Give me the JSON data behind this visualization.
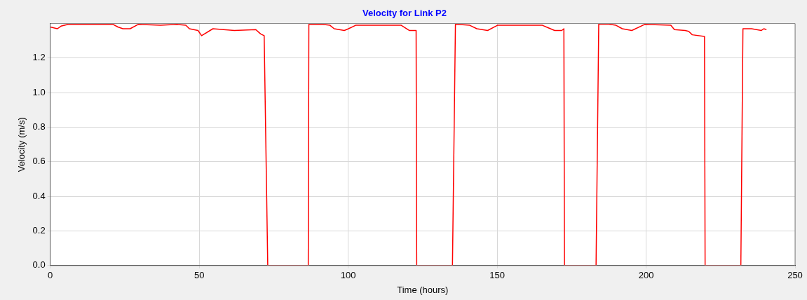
{
  "chart_data": {
    "type": "line",
    "title": "Velocity for Link P2",
    "xlabel": "Time (hours)",
    "ylabel": "Velocity (m/s)",
    "xlim": [
      0,
      250
    ],
    "xticks": [
      0,
      50,
      100,
      150,
      200,
      250
    ],
    "ylim": [
      0,
      1.4
    ],
    "yticks": [
      {
        "value": 0,
        "label": "0.0"
      },
      0.2,
      0.4,
      0.6,
      0.8,
      {
        "value": 1,
        "label": "1.0"
      },
      1.2
    ],
    "grid": true,
    "legend": false,
    "marker": "none",
    "line_style": "solid",
    "series": [
      {
        "color": "#ff0000",
        "x": [
          0,
          2.4,
          3.6,
          6,
          13.2,
          21,
          22.7,
          24.4,
          26.8,
          29.5,
          37,
          42.6,
          45.5,
          46.7,
          49.6,
          50.8,
          54.6,
          61.8,
          69,
          70.6,
          71.8,
          73,
          86.6,
          86.8,
          91,
          93.9,
          95.3,
          98.7,
          100.1,
          102.5,
          117.8,
          120.5,
          122.8,
          123,
          135,
          136,
          140.8,
          143.2,
          146.8,
          150.1,
          165.2,
          167.2,
          169.3,
          171.7,
          172.4,
          172.6,
          183.2,
          184.1,
          187.5,
          189.9,
          192,
          195.2,
          199.5,
          208.3,
          209.5,
          213.1,
          214.3,
          215.5,
          219.6,
          219.8,
          231.8,
          232.5,
          235.4,
          238.7,
          239.5,
          240.4
        ],
        "values": [
          1.38,
          1.37,
          1.385,
          1.395,
          1.395,
          1.396,
          1.38,
          1.37,
          1.37,
          1.395,
          1.39,
          1.395,
          1.39,
          1.37,
          1.36,
          1.33,
          1.37,
          1.36,
          1.365,
          1.34,
          1.33,
          0,
          0,
          1.395,
          1.396,
          1.39,
          1.37,
          1.36,
          1.37,
          1.39,
          1.39,
          1.36,
          1.36,
          0,
          0,
          1.396,
          1.39,
          1.37,
          1.36,
          1.39,
          1.39,
          1.375,
          1.36,
          1.36,
          1.37,
          0,
          0,
          1.396,
          1.396,
          1.39,
          1.37,
          1.36,
          1.395,
          1.39,
          1.365,
          1.36,
          1.355,
          1.335,
          1.325,
          0,
          0,
          1.37,
          1.37,
          1.36,
          1.37,
          1.365
        ]
      }
    ]
  }
}
